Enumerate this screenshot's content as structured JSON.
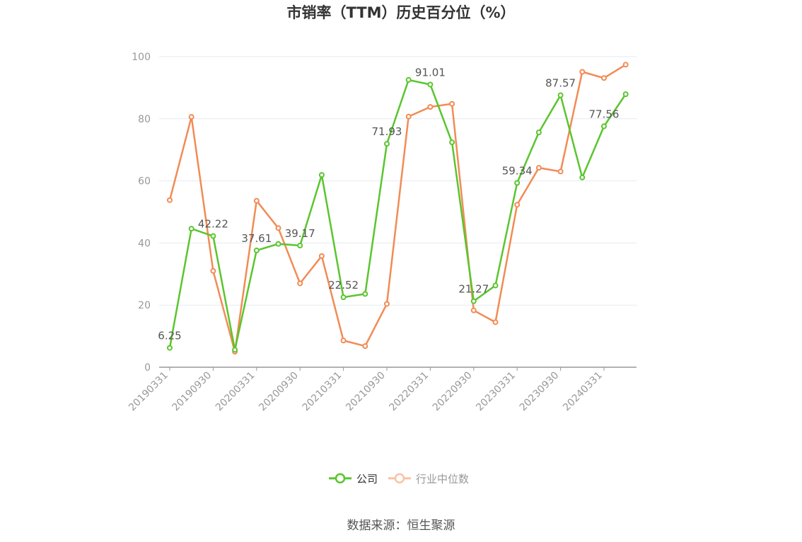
{
  "chart_data": {
    "type": "line",
    "title": "市销率（TTM）历史百分位（%）",
    "ylim": [
      0,
      100
    ],
    "yticks": [
      0,
      20,
      40,
      60,
      80,
      100
    ],
    "x": [
      "20190331",
      "20190630",
      "20190930",
      "20191231",
      "20200331",
      "20200630",
      "20200930",
      "20201231",
      "20210331",
      "20210630",
      "20210930",
      "20211231",
      "20220331",
      "20220630",
      "20220930",
      "20221231",
      "20230331",
      "20230630",
      "20230930",
      "20231231",
      "20240331",
      "20240630"
    ],
    "xtick_labels": [
      "20190331",
      "20190930",
      "20200331",
      "20200930",
      "20210331",
      "20210930",
      "20220331",
      "20220930",
      "20230331",
      "20230930",
      "20240331"
    ],
    "grid": true,
    "legend_position": "bottom",
    "series": [
      {
        "name": "公司",
        "color": "#5ac52e",
        "values": [
          6.25,
          44.6,
          42.22,
          5.6,
          37.61,
          39.7,
          39.17,
          61.9,
          22.52,
          23.6,
          71.93,
          92.5,
          91.01,
          72.4,
          21.27,
          26.3,
          59.34,
          75.6,
          87.57,
          61.1,
          77.56,
          87.9
        ],
        "labels": [
          "6.25",
          "",
          "42.22",
          "",
          "37.61",
          "",
          "39.17",
          "",
          "22.52",
          "",
          "71.93",
          "",
          "91.01",
          "",
          "21.27",
          "",
          "59.34",
          "",
          "87.57",
          "",
          "77.56",
          ""
        ]
      },
      {
        "name": "行业中位数",
        "color": "#f28b54",
        "values": [
          53.8,
          80.6,
          31.0,
          5.0,
          53.6,
          44.8,
          27.0,
          35.8,
          8.6,
          6.8,
          20.4,
          80.7,
          83.8,
          84.8,
          18.3,
          14.5,
          52.3,
          64.2,
          63.0,
          95.1,
          93.1,
          97.4
        ]
      }
    ]
  },
  "source": "数据来源：恒生聚源"
}
